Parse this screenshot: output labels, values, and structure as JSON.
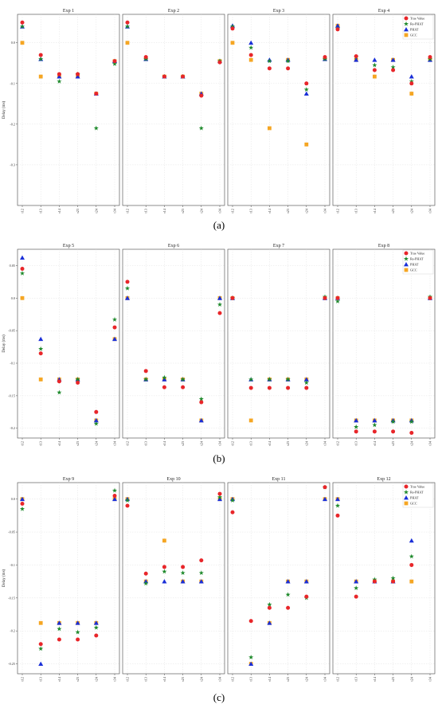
{
  "chart_data": {
    "type": "scatter",
    "ylabel": "Delay (ms)",
    "xlabels": [
      "τ12",
      "τ13",
      "τ14",
      "τ23",
      "τ24",
      "τ34"
    ],
    "series": [
      {
        "name": "True Value",
        "color": "#e8262a",
        "marker": "circle"
      },
      {
        "name": "Re-PHAT",
        "color": "#1f8a2c",
        "marker": "star"
      },
      {
        "name": "PHAT",
        "color": "#1a2fd8",
        "marker": "triangle"
      },
      {
        "name": "GCC",
        "color": "#f5a623",
        "marker": "square"
      }
    ],
    "groups": [
      {
        "caption": "(a)",
        "yticks": [
          0.0,
          -0.1,
          -0.2,
          -0.3
        ],
        "ylim": [
          -0.4,
          0.07
        ],
        "panels": [
          {
            "title": "Exp 1",
            "values": [
              [
                0.05,
                -0.03,
                -0.077,
                -0.077,
                -0.125,
                -0.045
              ],
              [
                0.04,
                -0.04,
                -0.095,
                -0.077,
                -0.21,
                -0.052
              ],
              [
                0.04,
                -0.04,
                -0.083,
                -0.083,
                -0.125,
                -0.045
              ],
              [
                0.0,
                -0.083,
                -0.083,
                -0.083,
                -0.125,
                -0.045
              ]
            ]
          },
          {
            "title": "Exp 2",
            "values": [
              [
                0.05,
                -0.035,
                -0.083,
                -0.083,
                -0.13,
                -0.048
              ],
              [
                0.04,
                -0.04,
                -0.083,
                -0.083,
                -0.21,
                -0.045
              ],
              [
                0.04,
                -0.04,
                -0.083,
                -0.083,
                -0.125,
                -0.045
              ],
              [
                0.0,
                -0.04,
                -0.083,
                -0.083,
                -0.125,
                -0.045
              ]
            ]
          },
          {
            "title": "Exp 3",
            "values": [
              [
                0.035,
                -0.03,
                -0.063,
                -0.063,
                -0.1,
                -0.035
              ],
              [
                0.04,
                -0.012,
                -0.045,
                -0.045,
                -0.115,
                -0.04
              ],
              [
                0.042,
                0.0,
                -0.042,
                -0.042,
                -0.125,
                -0.04
              ],
              [
                0.0,
                -0.042,
                -0.21,
                -0.042,
                -0.25,
                -0.04
              ]
            ]
          },
          {
            "title": "Exp 4",
            "values": [
              [
                0.033,
                -0.033,
                -0.067,
                -0.067,
                -0.1,
                -0.035
              ],
              [
                0.035,
                -0.035,
                -0.055,
                -0.06,
                -0.095,
                -0.04
              ],
              [
                0.042,
                -0.042,
                -0.042,
                -0.042,
                -0.083,
                -0.042
              ],
              [
                0.042,
                -0.042,
                -0.083,
                -0.042,
                -0.125,
                -0.042
              ]
            ]
          }
        ]
      },
      {
        "caption": "(b)",
        "yticks": [
          0.05,
          0.0,
          -0.05,
          -0.1,
          -0.15,
          -0.2
        ],
        "ylim": [
          -0.215,
          0.075
        ],
        "panels": [
          {
            "title": "Exp 5",
            "values": [
              [
                0.045,
                -0.085,
                -0.128,
                -0.13,
                -0.175,
                -0.045
              ],
              [
                0.038,
                -0.078,
                -0.145,
                -0.125,
                -0.193,
                -0.033
              ],
              [
                0.062,
                -0.063,
                -0.125,
                -0.125,
                -0.188,
                -0.063
              ],
              [
                0.0,
                -0.125,
                -0.125,
                -0.125,
                -0.188,
                -0.063
              ]
            ]
          },
          {
            "title": "Exp 6",
            "values": [
              [
                0.025,
                -0.112,
                -0.137,
                -0.137,
                -0.16,
                -0.023
              ],
              [
                0.015,
                -0.125,
                -0.122,
                -0.125,
                -0.155,
                -0.01
              ],
              [
                0.0,
                -0.125,
                -0.125,
                -0.125,
                -0.188,
                0.0
              ],
              [
                0.0,
                -0.125,
                -0.125,
                -0.125,
                -0.188,
                0.0
              ]
            ]
          },
          {
            "title": "Exp 7",
            "values": [
              [
                0.0,
                -0.138,
                -0.138,
                -0.138,
                -0.138,
                0.0
              ],
              [
                0.0,
                -0.125,
                -0.125,
                -0.125,
                -0.13,
                0.002
              ],
              [
                0.0,
                -0.125,
                -0.125,
                -0.125,
                -0.125,
                0.0
              ],
              [
                0.0,
                -0.188,
                -0.125,
                -0.125,
                -0.125,
                0.0
              ]
            ]
          },
          {
            "title": "Exp 8",
            "values": [
              [
                0.0,
                -0.205,
                -0.205,
                -0.205,
                -0.207,
                0.0
              ],
              [
                -0.005,
                -0.198,
                -0.195,
                -0.19,
                -0.19,
                0.002
              ],
              [
                0.0,
                -0.188,
                -0.188,
                -0.188,
                -0.188,
                0.0
              ],
              [
                0.0,
                -0.188,
                -0.188,
                -0.188,
                -0.188,
                0.0
              ]
            ]
          }
        ]
      },
      {
        "caption": "(c)",
        "yticks": [
          0.0,
          -0.05,
          -0.1,
          -0.15,
          -0.2,
          -0.25
        ],
        "ylim": [
          -0.265,
          0.025
        ],
        "panels": [
          {
            "title": "Exp 9",
            "values": [
              [
                -0.007,
                -0.22,
                -0.213,
                -0.213,
                -0.207,
                0.005
              ],
              [
                -0.015,
                -0.227,
                -0.197,
                -0.202,
                -0.195,
                0.013
              ],
              [
                0.0,
                -0.25,
                -0.188,
                -0.188,
                -0.188,
                0.0
              ],
              [
                0.0,
                -0.188,
                -0.188,
                -0.188,
                -0.188,
                0.0
              ]
            ]
          },
          {
            "title": "Exp 10",
            "values": [
              [
                -0.01,
                -0.113,
                -0.103,
                -0.103,
                -0.093,
                0.008
              ],
              [
                -0.002,
                -0.128,
                -0.11,
                -0.112,
                -0.112,
                0.003
              ],
              [
                0.0,
                -0.125,
                -0.125,
                -0.125,
                -0.125,
                0.0
              ],
              [
                0.0,
                -0.125,
                -0.063,
                -0.125,
                -0.125,
                0.0
              ]
            ]
          },
          {
            "title": "Exp 11",
            "values": [
              [
                -0.02,
                -0.185,
                -0.165,
                -0.165,
                -0.148,
                0.018
              ],
              [
                -0.002,
                -0.24,
                -0.16,
                -0.145,
                -0.15,
                0.018
              ],
              [
                0.0,
                -0.25,
                -0.188,
                -0.125,
                -0.125,
                0.0
              ],
              [
                0.0,
                -0.25,
                -0.188,
                -0.125,
                -0.125,
                0.0
              ]
            ]
          },
          {
            "title": "Exp 12",
            "values": [
              [
                -0.025,
                -0.148,
                -0.125,
                -0.125,
                -0.1,
                null
              ],
              [
                -0.01,
                -0.135,
                -0.122,
                -0.12,
                -0.087,
                null
              ],
              [
                0.0,
                -0.125,
                -0.125,
                -0.125,
                -0.063,
                0.0
              ],
              [
                0.0,
                -0.125,
                -0.125,
                -0.125,
                -0.125,
                null
              ]
            ]
          }
        ]
      }
    ]
  }
}
